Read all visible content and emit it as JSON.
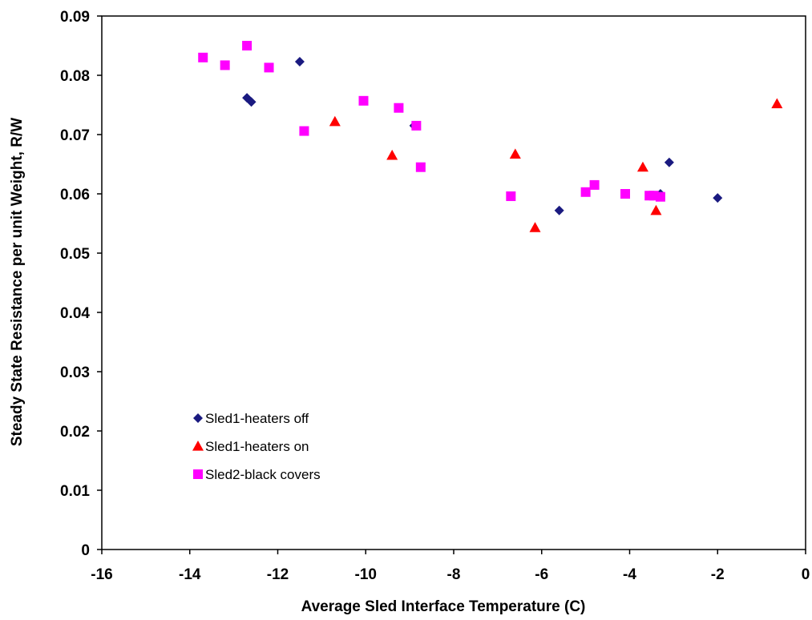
{
  "chart_data": {
    "type": "scatter",
    "title": "",
    "xlabel": "Average Sled Interface Temperature (C)",
    "ylabel": "Steady State Resistance per unit Weight, R/W",
    "xlim": [
      -16,
      0
    ],
    "ylim": [
      0,
      0.09
    ],
    "x_ticks": [
      "-16",
      "-14",
      "-12",
      "-10",
      "-8",
      "-6",
      "-4",
      "-2",
      "0"
    ],
    "y_ticks": [
      "0",
      "0.01",
      "0.02",
      "0.03",
      "0.04",
      "0.05",
      "0.06",
      "0.07",
      "0.08",
      "0.09"
    ],
    "grid": false,
    "legend_position": "bottom-left",
    "series": [
      {
        "name": "Sled1-heaters off",
        "marker": "diamond",
        "color": "#1a1a80",
        "points": [
          {
            "x": -12.7,
            "y": 0.0762
          },
          {
            "x": -12.6,
            "y": 0.0755
          },
          {
            "x": -11.5,
            "y": 0.0823
          },
          {
            "x": -8.9,
            "y": 0.0715
          },
          {
            "x": -5.6,
            "y": 0.0572
          },
          {
            "x": -3.3,
            "y": 0.06
          },
          {
            "x": -3.1,
            "y": 0.0653
          },
          {
            "x": -2.0,
            "y": 0.0593
          }
        ]
      },
      {
        "name": "Sled1-heaters on",
        "marker": "triangle",
        "color": "#ff0000",
        "points": [
          {
            "x": -10.7,
            "y": 0.0722
          },
          {
            "x": -9.4,
            "y": 0.0665
          },
          {
            "x": -6.6,
            "y": 0.0667
          },
          {
            "x": -6.15,
            "y": 0.0543
          },
          {
            "x": -3.7,
            "y": 0.0645
          },
          {
            "x": -3.4,
            "y": 0.0572
          },
          {
            "x": -0.65,
            "y": 0.0752
          }
        ]
      },
      {
        "name": "Sled2-black covers",
        "marker": "square",
        "color": "#ff00ff",
        "points": [
          {
            "x": -13.7,
            "y": 0.083
          },
          {
            "x": -13.2,
            "y": 0.0817
          },
          {
            "x": -12.7,
            "y": 0.085
          },
          {
            "x": -12.2,
            "y": 0.0813
          },
          {
            "x": -11.4,
            "y": 0.0706
          },
          {
            "x": -10.05,
            "y": 0.0757
          },
          {
            "x": -9.25,
            "y": 0.0745
          },
          {
            "x": -8.85,
            "y": 0.0715
          },
          {
            "x": -8.75,
            "y": 0.0645
          },
          {
            "x": -6.7,
            "y": 0.0596
          },
          {
            "x": -5.0,
            "y": 0.0603
          },
          {
            "x": -4.8,
            "y": 0.0615
          },
          {
            "x": -4.1,
            "y": 0.06
          },
          {
            "x": -3.55,
            "y": 0.0597
          },
          {
            "x": -3.45,
            "y": 0.0597
          },
          {
            "x": -3.3,
            "y": 0.0595
          }
        ]
      }
    ]
  }
}
